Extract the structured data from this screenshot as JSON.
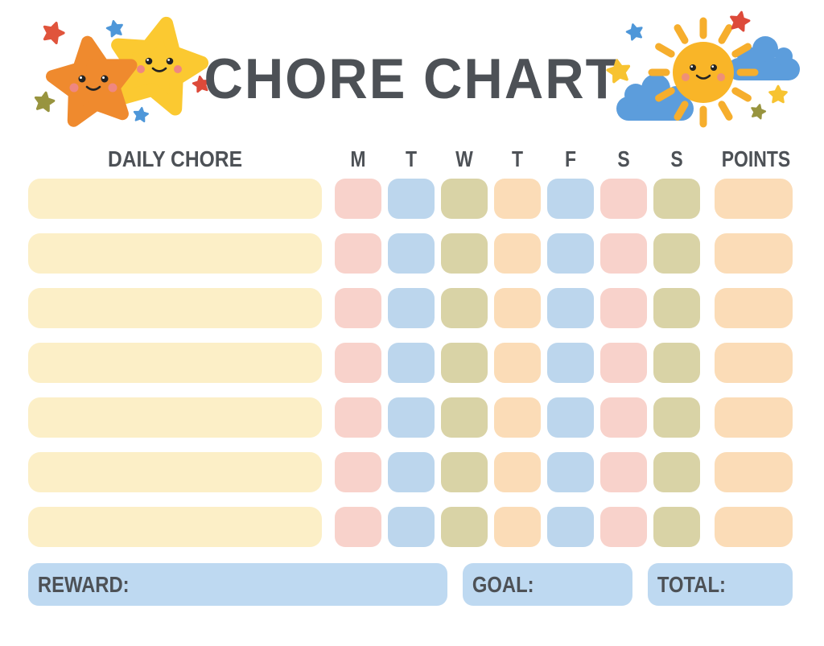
{
  "page": {
    "title": "CHORE CHART",
    "background": "#FFFFFF"
  },
  "colors": {
    "text": "#4D5156",
    "chore_cell": "#FCEFC7",
    "pink_cell": "#F8D2CB",
    "blue_cell": "#BCD6ED",
    "olive_cell": "#D9D3A6",
    "peach_cell": "#FBDCB7",
    "footer_box": "#BED9F1",
    "star_orange": "#EF8A2E",
    "star_yellow": "#FBC931",
    "sun_yellow": "#F9B528",
    "ray_yellow": "#F6AE2D",
    "cloud_blue": "#5C9DDC",
    "sparkle_red": "#DD4A3A",
    "sparkle_blue": "#4E97D9",
    "sparkle_olive": "#98943F",
    "sparkle_yellow": "#F7C331"
  },
  "table": {
    "chore_column_header": "DAILY CHORE",
    "day_headers": [
      "M",
      "T",
      "W",
      "T",
      "F",
      "S",
      "S"
    ],
    "points_header": "POINTS",
    "row_count": 7,
    "day_cell_colors": [
      "#F8D2CB",
      "#BCD6ED",
      "#D9D3A6",
      "#FBDCB7",
      "#BCD6ED",
      "#F8D2CB",
      "#D9D3A6"
    ],
    "chore_values": [
      "",
      "",
      "",
      "",
      "",
      "",
      ""
    ],
    "points_values": [
      "",
      "",
      "",
      "",
      "",
      "",
      ""
    ]
  },
  "footer": {
    "reward_label": "REWARD:",
    "goal_label": "GOAL:",
    "total_label": "TOTAL:",
    "reward_value": "",
    "goal_value": "",
    "total_value": ""
  },
  "decorations": {
    "left": "two smiling stars with sparkles",
    "right": "smiling sun with clouds and sparkles"
  }
}
